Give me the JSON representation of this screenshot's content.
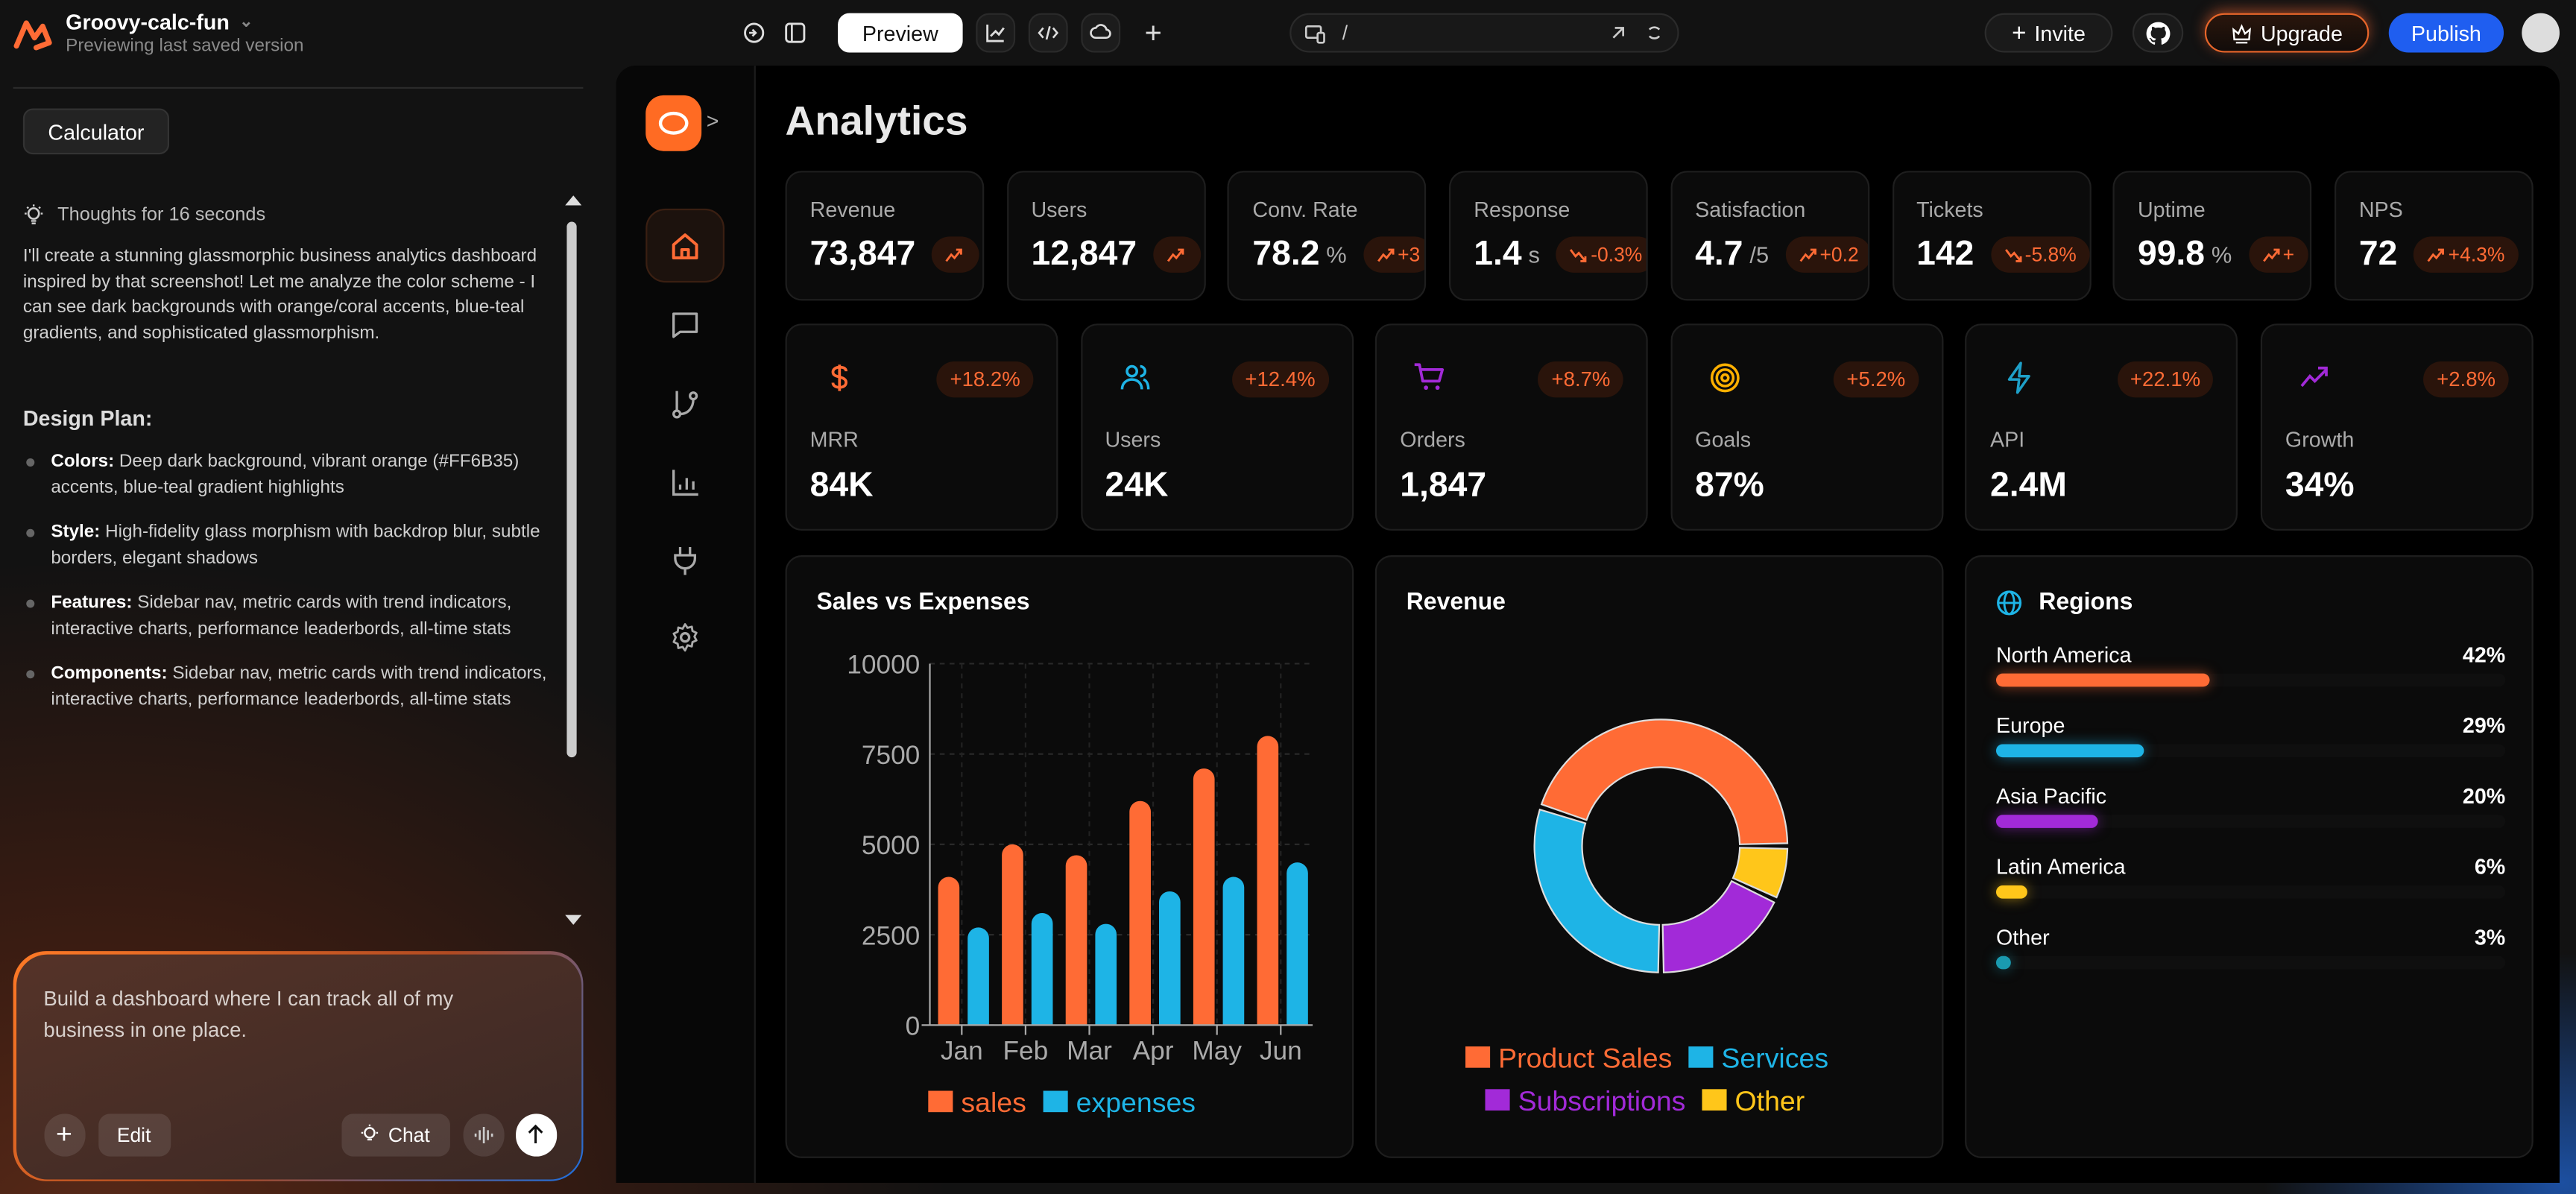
{
  "topbar": {
    "project_name": "Groovy-calc-fun",
    "project_status": "Previewing last saved version",
    "preview_label": "Preview",
    "url_path": "/",
    "invite_label": "Invite",
    "upgrade_label": "Upgrade",
    "publish_label": "Publish"
  },
  "chat": {
    "context_button": "Calculator",
    "thoughts": "Thoughts for 16 seconds",
    "intro": "I'll create a stunning glassmorphic business analytics dashboard inspired by that screenshot! Let me analyze the color scheme -  I can see dark backgrounds with orange/coral accents, blue-teal gradients, and sophisticated glassmorphism.",
    "plan_heading": "Design Plan:",
    "plan": [
      {
        "label": "Colors:",
        "text": " Deep dark background, vibrant orange (#FF6B35) accents, blue-teal gradient highlights"
      },
      {
        "label": "Style:",
        "text": "  High-fidelity glass morphism with backdrop blur, subtle borders, elegant shadows"
      },
      {
        "label": "Features:",
        "text": " Sidebar nav, metric cards with trend indicators, interactive charts, performance leaderbords, all-time stats"
      },
      {
        "label": "Components:",
        "text": " Sidebar nav, metric cards with trend indicators, interactive charts, performance leaderbords, all-time stats"
      }
    ],
    "prompt": "Build a dashboard where I can track all of my business in one place.",
    "edit_label": "Edit",
    "chat_label": "Chat"
  },
  "app": {
    "title": "Analytics",
    "nav": [
      "home-icon",
      "chat-icon",
      "branch-icon",
      "bar-chart-icon",
      "plug-icon",
      "gear-icon"
    ],
    "stats": [
      {
        "label": "Revenue",
        "value": "73,847",
        "unit": "",
        "trend": "up",
        "badge": ""
      },
      {
        "label": "Users",
        "value": "12,847",
        "unit": "",
        "trend": "up",
        "badge": ""
      },
      {
        "label": "Conv. Rate",
        "value": "78.2",
        "unit": "%",
        "trend": "up",
        "badge": "+3"
      },
      {
        "label": "Response",
        "value": "1.4",
        "unit": "s",
        "trend": "down",
        "badge": "-0.3%"
      },
      {
        "label": "Satisfaction",
        "value": "4.7",
        "unit": "/5",
        "trend": "up",
        "badge": "+0.2"
      },
      {
        "label": "Tickets",
        "value": "142",
        "unit": "",
        "trend": "down",
        "badge": "-5.8%"
      },
      {
        "label": "Uptime",
        "value": "99.8",
        "unit": "%",
        "trend": "up",
        "badge": "+"
      },
      {
        "label": "NPS",
        "value": "72",
        "unit": "",
        "trend": "up",
        "badge": "+4.3%"
      }
    ],
    "metrics": [
      {
        "label": "MRR",
        "value": "84K",
        "change": "+18.2%",
        "icon": "dollar-icon",
        "color": "#ff6b35"
      },
      {
        "label": "Users",
        "value": "24K",
        "change": "+12.4%",
        "icon": "users-icon",
        "color": "#1eb4e6"
      },
      {
        "label": "Orders",
        "value": "1,847",
        "change": "+8.7%",
        "icon": "cart-icon",
        "color": "#a22ad8"
      },
      {
        "label": "Goals",
        "value": "87%",
        "change": "+5.2%",
        "icon": "target-icon",
        "color": "#ffb000"
      },
      {
        "label": "API",
        "value": "2.4M",
        "change": "+22.1%",
        "icon": "bolt-icon",
        "color": "#1ea0c8"
      },
      {
        "label": "Growth",
        "value": "34%",
        "change": "+2.8%",
        "icon": "trending-up-icon",
        "color": "#a22ad8"
      }
    ],
    "regions": {
      "title": "Regions",
      "items": [
        {
          "name": "North America",
          "pct_label": "42%",
          "pct": 42,
          "color": "#ff6b35"
        },
        {
          "name": "Europe",
          "pct_label": "29%",
          "pct": 29,
          "color": "#1eb4e6"
        },
        {
          "name": "Asia Pacific",
          "pct_label": "20%",
          "pct": 20,
          "color": "#a22ad8"
        },
        {
          "name": "Latin America",
          "pct_label": "6%",
          "pct": 6,
          "color": "#ffc61a"
        },
        {
          "name": "Other",
          "pct_label": "3%",
          "pct": 3,
          "color": "#1a9ab0"
        }
      ]
    }
  },
  "chart_data": [
    {
      "type": "bar",
      "title": "Sales vs Expenses",
      "categories": [
        "Jan",
        "Feb",
        "Mar",
        "Apr",
        "May",
        "Jun"
      ],
      "series": [
        {
          "name": "sales",
          "values": [
            4100,
            5000,
            4700,
            6200,
            7100,
            8000
          ],
          "color": "#ff6b35"
        },
        {
          "name": "expenses",
          "values": [
            2700,
            3100,
            2800,
            3700,
            4100,
            4500
          ],
          "color": "#1eb4e6"
        }
      ],
      "yticks": [
        "0",
        "2500",
        "5000",
        "7500",
        "10000"
      ],
      "ylim": [
        0,
        10000
      ],
      "grid": true,
      "legend": "bottom"
    },
    {
      "type": "pie",
      "title": "Revenue",
      "donut": true,
      "labels": [
        "Product Sales",
        "Services",
        "Subscriptions",
        "Other"
      ],
      "values": [
        45,
        30,
        18,
        7
      ],
      "colors": [
        "#ff6b35",
        "#1eb4e6",
        "#a22ad8",
        "#ffc61a"
      ],
      "legend": "bottom"
    }
  ]
}
